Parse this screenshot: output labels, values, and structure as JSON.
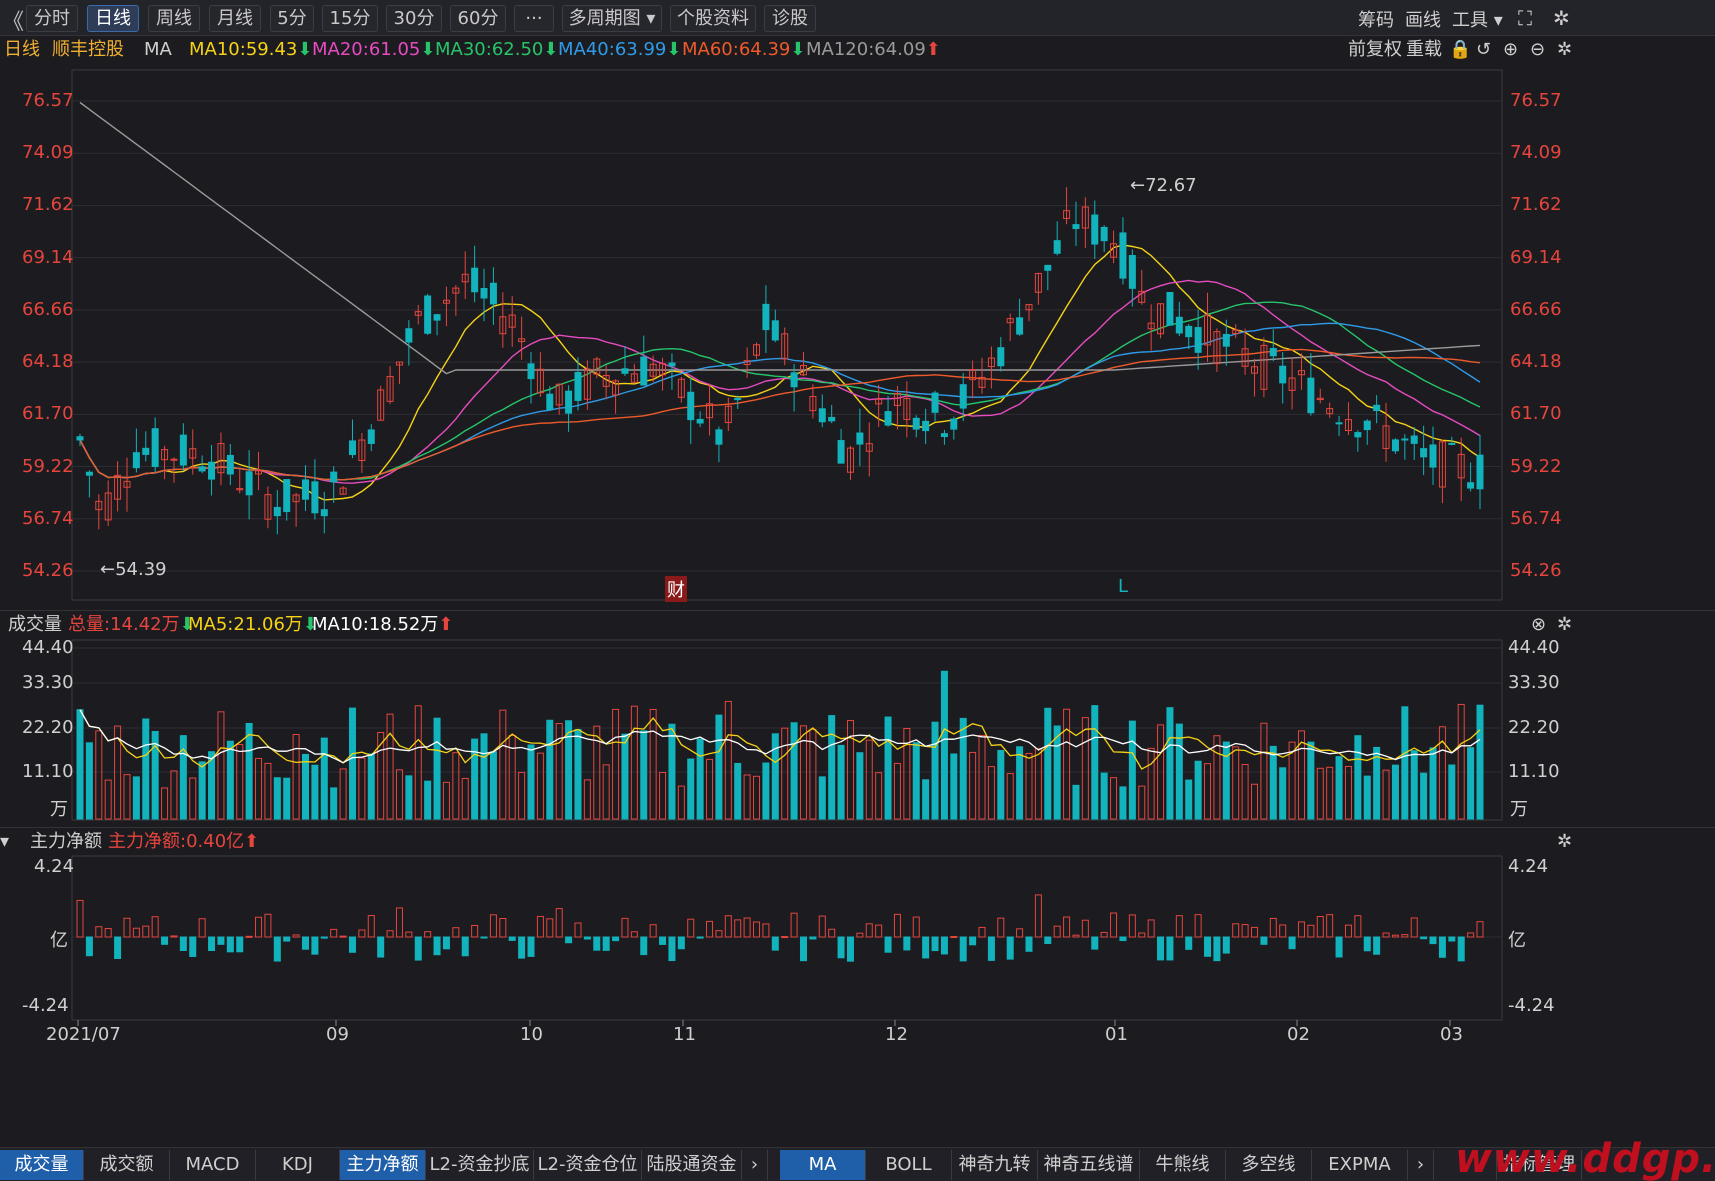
{
  "toolbar": {
    "back_glyph": "《",
    "periods": [
      "分时",
      "日线",
      "周线",
      "月线",
      "5分",
      "15分",
      "30分",
      "60分"
    ],
    "active_period": "日线",
    "more_label": "···",
    "multi_label": "多周期图",
    "info_label": "个股资料",
    "diag_label": "诊股",
    "right_chip": "筹码",
    "right_draw": "画线",
    "right_tools": "工具"
  },
  "header": {
    "period": "日线",
    "stock_name": "顺丰控股",
    "ma_label": "MA",
    "ma10": "MA10:59.43",
    "ma20": "MA20:61.05",
    "ma30": "MA30:62.50",
    "ma40": "MA40:63.99",
    "ma60": "MA60:64.39",
    "ma120": "MA120:64.09",
    "down_arrow": "⬇",
    "up_arrow": "⬆",
    "adjust": "前复权",
    "reload": "重载"
  },
  "price_axis": [
    "76.57",
    "74.09",
    "71.62",
    "69.14",
    "66.66",
    "64.18",
    "61.70",
    "59.22",
    "56.74",
    "54.26"
  ],
  "annotations": {
    "high": "←72.67",
    "low": "←54.39",
    "cai": "财",
    "L": "L"
  },
  "volume": {
    "label": "成交量",
    "total": "总量:14.42万",
    "ma5": "MA5:21.06万",
    "ma10": "MA10:18.52万",
    "axis": [
      "44.40",
      "33.30",
      "22.20",
      "11.10"
    ],
    "unit": "万"
  },
  "mainflow": {
    "label": "主力净额",
    "value": "主力净额:0.40亿",
    "axis_top": "4.24",
    "axis_mid": "亿",
    "axis_bottom": "-4.24"
  },
  "dates": [
    "2021/07",
    "09",
    "10",
    "11",
    "12",
    "01",
    "02",
    "03"
  ],
  "bottom_left_tabs": [
    "成交量",
    "成交额",
    "MACD",
    "KDJ",
    "主力净额",
    "L2-资金抄底",
    "L2-资金仓位",
    "陆股通资金"
  ],
  "bottom_right_tabs": [
    "MA",
    "BOLL",
    "神奇九转",
    "神奇五线谱",
    "牛熊线",
    "多空线",
    "EXPMA"
  ],
  "bottom_manage": "指标管理",
  "watermark": "www.ddgp.",
  "chart_data": {
    "type": "candlestick",
    "price_range": [
      54.26,
      76.57
    ],
    "series_colors": {
      "up": "#e5453d",
      "down": "#12b3bd",
      "ma10": "#f5d215",
      "ma20": "#e64bc0",
      "ma30": "#27c46a",
      "ma40": "#2f9be8",
      "ma60": "#ee5a2a",
      "ma120": "#9a9a9a"
    },
    "volume_range": [
      0,
      44.4
    ],
    "mainflow_range": [
      -4.24,
      4.24
    ]
  }
}
